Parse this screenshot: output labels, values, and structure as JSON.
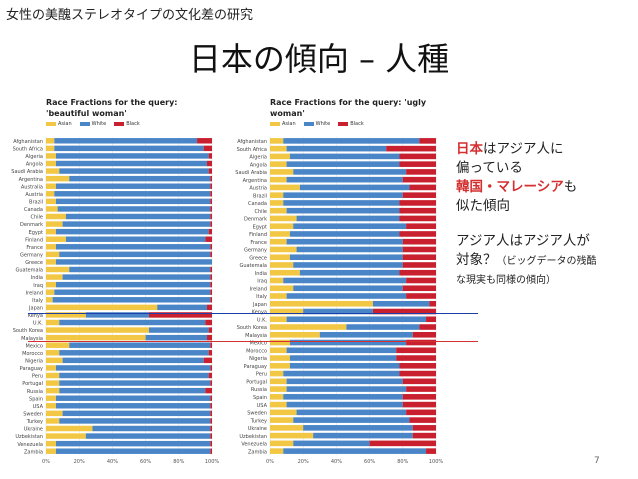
{
  "header": "女性の美醜ステレオタイプの文化差の研究",
  "title": "日本の傾向 – 人種",
  "annotation": {
    "line1_a": "日本",
    "line1_b": "はアジア人に",
    "line2": "偏っている",
    "line3_a": "韓国・マレーシア",
    "line3_b": "も",
    "line4": "似た傾向",
    "line5": "アジア人はアジア人が",
    "line6_a": "対象？",
    "line6_b": "（ビッグデータの残酷",
    "line7": "な現実も同様の傾向）"
  },
  "page_number": "7",
  "colors": {
    "asian": "#f2c744",
    "white": "#4a86c7",
    "black": "#c9202f",
    "blue_line": "#1b3ea8",
    "red_line": "#d43030"
  },
  "chart_data": [
    {
      "type": "bar",
      "title": "Race Fractions for the query: 'beautiful woman'",
      "legend": [
        "Asian",
        "White",
        "Black"
      ],
      "x_ticks": [
        "0%",
        "20%",
        "40%",
        "60%",
        "80%",
        "100%"
      ],
      "xlim": [
        0,
        100
      ],
      "categories": [
        "Afghanistan",
        "South Africa",
        "Algeria",
        "Angola",
        "Saudi Arabia",
        "Argentina",
        "Australia",
        "Austria",
        "Brazil",
        "Canada",
        "Chile",
        "Denmark",
        "Egypt",
        "Finland",
        "France",
        "Germany",
        "Greece",
        "Guatemala",
        "India",
        "Iraq",
        "Ireland",
        "Italy",
        "Japan",
        "Kenya",
        "U.K.",
        "South Korea",
        "Malaysia",
        "Mexico",
        "Morocco",
        "Nigeria",
        "Paraguay",
        "Peru",
        "Portugal",
        "Russia",
        "Spain",
        "USA",
        "Sweden",
        "Turkey",
        "Ukraine",
        "Uzbekistan",
        "Venezuela",
        "Zambia"
      ],
      "series": [
        {
          "name": "Asian",
          "values": [
            5,
            5,
            6,
            6,
            8,
            14,
            6,
            5,
            6,
            7,
            12,
            10,
            6,
            12,
            6,
            8,
            6,
            14,
            10,
            6,
            5,
            4,
            67,
            24,
            8,
            62,
            60,
            14,
            8,
            10,
            6,
            8,
            8,
            8,
            6,
            6,
            10,
            8,
            28,
            24,
            6,
            6
          ]
        },
        {
          "name": "White",
          "values": [
            86,
            90,
            92,
            91,
            90,
            85,
            93,
            94,
            93,
            92,
            87,
            89,
            92,
            84,
            93,
            91,
            94,
            85,
            89,
            93,
            94,
            95,
            30,
            38,
            88,
            36,
            37,
            85,
            90,
            85,
            93,
            90,
            91,
            88,
            93,
            93,
            89,
            91,
            71,
            75,
            93,
            93
          ]
        },
        {
          "name": "Black",
          "values": [
            9,
            5,
            2,
            3,
            2,
            1,
            1,
            1,
            1,
            1,
            1,
            1,
            2,
            4,
            1,
            1,
            0,
            1,
            1,
            1,
            1,
            1,
            3,
            38,
            4,
            2,
            3,
            1,
            2,
            5,
            1,
            2,
            1,
            4,
            1,
            1,
            1,
            1,
            1,
            1,
            1,
            1
          ]
        }
      ]
    },
    {
      "type": "bar",
      "title": "Race Fractions for the query: 'ugly woman'",
      "legend": [
        "Asian",
        "White",
        "Black"
      ],
      "x_ticks": [
        "0%",
        "20%",
        "40%",
        "60%",
        "80%",
        "100%"
      ],
      "xlim": [
        0,
        100
      ],
      "categories": [
        "Afghanistan",
        "South Africa",
        "Algeria",
        "Angola",
        "Saudi Arabia",
        "Argentina",
        "Austria",
        "Brazil",
        "Canada",
        "Chile",
        "Denmark",
        "Egypt",
        "Finland",
        "France",
        "Germany",
        "Greece",
        "Guatemala",
        "India",
        "Iraq",
        "Ireland",
        "Italy",
        "Japan",
        "Kenya",
        "U.K.",
        "South Korea",
        "Malaysia",
        "Mexico",
        "Morocco",
        "Nigeria",
        "Paraguay",
        "Peru",
        "Portugal",
        "Russia",
        "Spain",
        "USA",
        "Sweden",
        "Turkey",
        "Ukraine",
        "Uzbekistan",
        "Venezuela",
        "Zambia"
      ],
      "series": [
        {
          "name": "Asian",
          "values": [
            8,
            10,
            12,
            10,
            14,
            10,
            18,
            8,
            8,
            10,
            16,
            14,
            12,
            10,
            16,
            12,
            14,
            18,
            8,
            14,
            10,
            62,
            20,
            10,
            46,
            30,
            12,
            10,
            12,
            12,
            8,
            10,
            10,
            8,
            10,
            16,
            14,
            20,
            26,
            14,
            8
          ]
        },
        {
          "name": "White",
          "values": [
            82,
            60,
            66,
            68,
            68,
            70,
            66,
            72,
            70,
            68,
            62,
            68,
            66,
            70,
            64,
            68,
            66,
            60,
            74,
            66,
            72,
            34,
            42,
            84,
            44,
            56,
            70,
            66,
            64,
            66,
            70,
            70,
            72,
            72,
            70,
            66,
            70,
            66,
            60,
            46,
            86
          ]
        },
        {
          "name": "Black",
          "values": [
            10,
            30,
            22,
            22,
            18,
            20,
            16,
            20,
            22,
            22,
            22,
            18,
            22,
            20,
            20,
            20,
            20,
            22,
            18,
            20,
            18,
            4,
            38,
            6,
            10,
            14,
            18,
            24,
            24,
            22,
            22,
            20,
            18,
            20,
            20,
            18,
            16,
            14,
            14,
            40,
            6
          ]
        }
      ]
    }
  ]
}
